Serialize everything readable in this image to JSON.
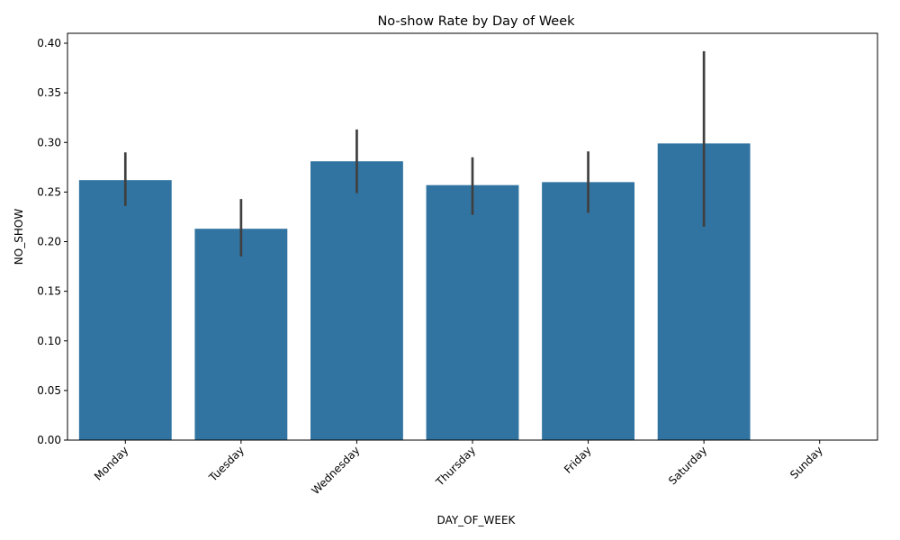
{
  "chart_data": {
    "type": "bar",
    "title": "No-show Rate by Day of Week",
    "xlabel": "DAY_OF_WEEK",
    "ylabel": "NO_SHOW",
    "categories": [
      "Monday",
      "Tuesday",
      "Wednesday",
      "Thursday",
      "Friday",
      "Saturday",
      "Sunday"
    ],
    "values": [
      0.262,
      0.213,
      0.281,
      0.257,
      0.26,
      0.299,
      null
    ],
    "error_low": [
      0.236,
      0.185,
      0.249,
      0.227,
      0.229,
      0.215,
      null
    ],
    "error_high": [
      0.29,
      0.243,
      0.313,
      0.285,
      0.291,
      0.392,
      null
    ],
    "ylim": [
      0,
      0.41
    ],
    "yticks": [
      "0.00",
      "0.05",
      "0.10",
      "0.15",
      "0.20",
      "0.25",
      "0.30",
      "0.35",
      "0.40"
    ],
    "ytick_values": [
      0,
      0.05,
      0.1,
      0.15,
      0.2,
      0.25,
      0.3,
      0.35,
      0.4
    ],
    "grid": false,
    "bar_color": "#3274a1",
    "error_color": "#3f3f3f"
  }
}
